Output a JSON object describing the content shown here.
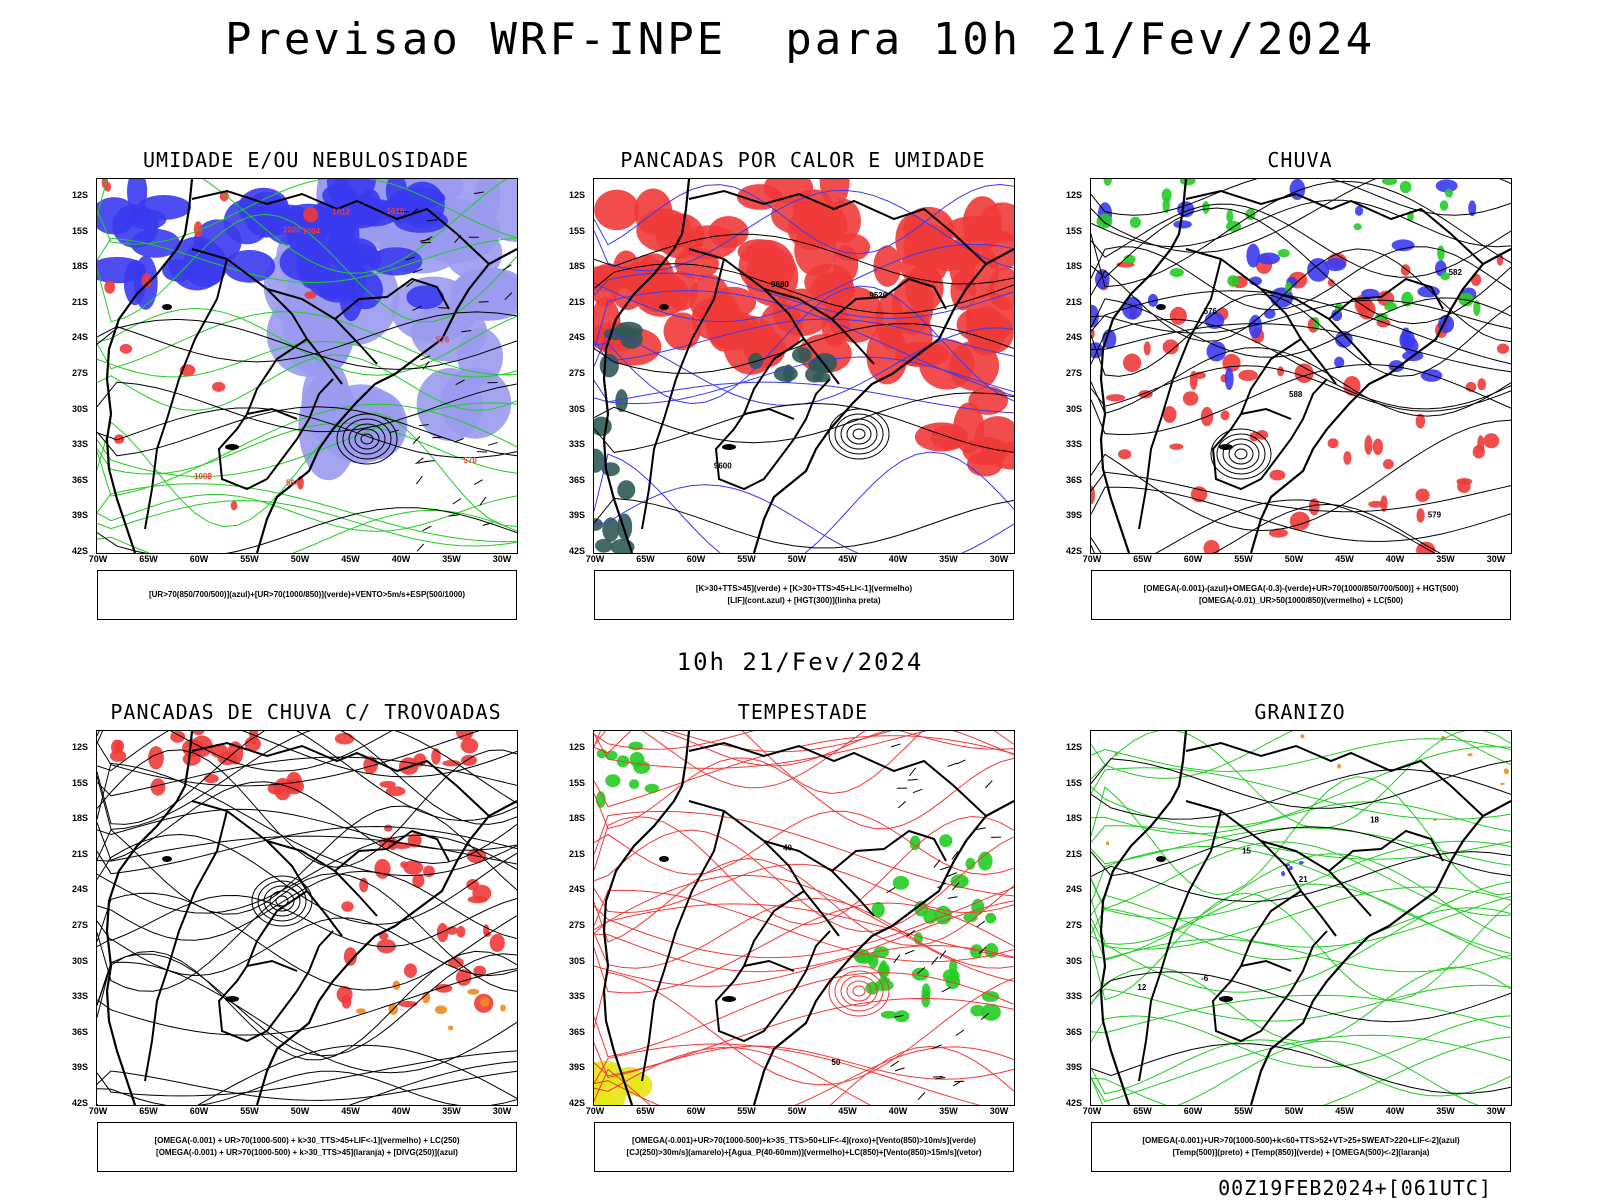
{
  "title": "Previsao WRF-INPE  para 10h 21/Fev/2024",
  "subtitle": "10h 21/Fev/2024",
  "footer": "00Z19FEB2024+[061UTC]",
  "axis": {
    "y_ticks": [
      "12S",
      "15S",
      "18S",
      "21S",
      "24S",
      "27S",
      "30S",
      "33S",
      "36S",
      "39S",
      "42S"
    ],
    "x_ticks": [
      "70W",
      "65W",
      "60W",
      "55W",
      "50W",
      "45W",
      "40W",
      "35W",
      "30W"
    ]
  },
  "colors": {
    "blue": "#3a3af0",
    "light_purple": "#9a9af0",
    "green": "#22cc22",
    "red": "#f03a3a",
    "orange": "#f08a1e",
    "yellow": "#e6e619",
    "dark_teal": "#2f5a55",
    "magenta": "#cc22cc"
  },
  "panels": [
    {
      "title": "UMIDADE E/OU NEBULOSIDADE",
      "legend": [
        "[UR>70(850/700/500)](azul)+[UR>70(1000/850)](verde)+VENTO>5m/s+ESP(500/1000)"
      ],
      "contour_labels": [
        "1012",
        "1008",
        "1016",
        "1020",
        "1004",
        "576",
        "570",
        "564"
      ]
    },
    {
      "title": "PANCADAS POR CALOR E UMIDADE",
      "legend": [
        "[K>30+TTS>45](verde) + [K>30+TTS>45+LI<-1](vermelho)",
        "[LIF](cont.azul) + [HGT(300)](linha preta)"
      ],
      "contour_labels": [
        "9680",
        "9600",
        "9520"
      ]
    },
    {
      "title": "CHUVA",
      "legend": [
        "[OMEGA(-0.001)-(azul)+OMEGA(-0.3)-(verde)+UR>70(1000/850/700/500)] + HGT(500)",
        "[OMEGA(-0.01)_UR>50(1000/850)(vermelho) + LC(500)"
      ],
      "contour_labels": [
        "579",
        "582",
        "588",
        "576"
      ]
    },
    {
      "title": "PANCADAS DE CHUVA C/ TROVOADAS",
      "legend": [
        "[OMEGA(-0.001) + UR>70(1000-500) + k>30_TTS>45+LIF<-1](vermelho) + LC(250)",
        "[OMEGA(-0.001) + UR>70(1000-500) + k>30_TTS>45](laranja) + [DIVG(250)](azul)"
      ],
      "contour_labels": []
    },
    {
      "title": "TEMPESTADE",
      "legend": [
        "[OMEGA(-0.001)+UR>70(1000-500)+k>35_TTS>50+LIF<-4](roxo)+[Vento(850)>10m/s](verde)",
        "[CJ(250)>30m/s](amarelo)+[Agua_P(40-60mm)](vermelho)+LC(850)+[Vento(850)>15m/s](vetor)"
      ],
      "contour_labels": [
        "40",
        "50"
      ]
    },
    {
      "title": "GRANIZO",
      "legend": [
        "[OMEGA(-0.001)+UR>70(1000-500)+k<60+TTS>52+VT>25+SWEAT>220+LIF<-2](azul)",
        "[Temp(500)](preto) + [Temp(850)](verde) + [OMEGA(500)<-2](laranja)"
      ],
      "contour_labels": [
        "12",
        "-6",
        "21",
        "15",
        "18"
      ]
    }
  ]
}
